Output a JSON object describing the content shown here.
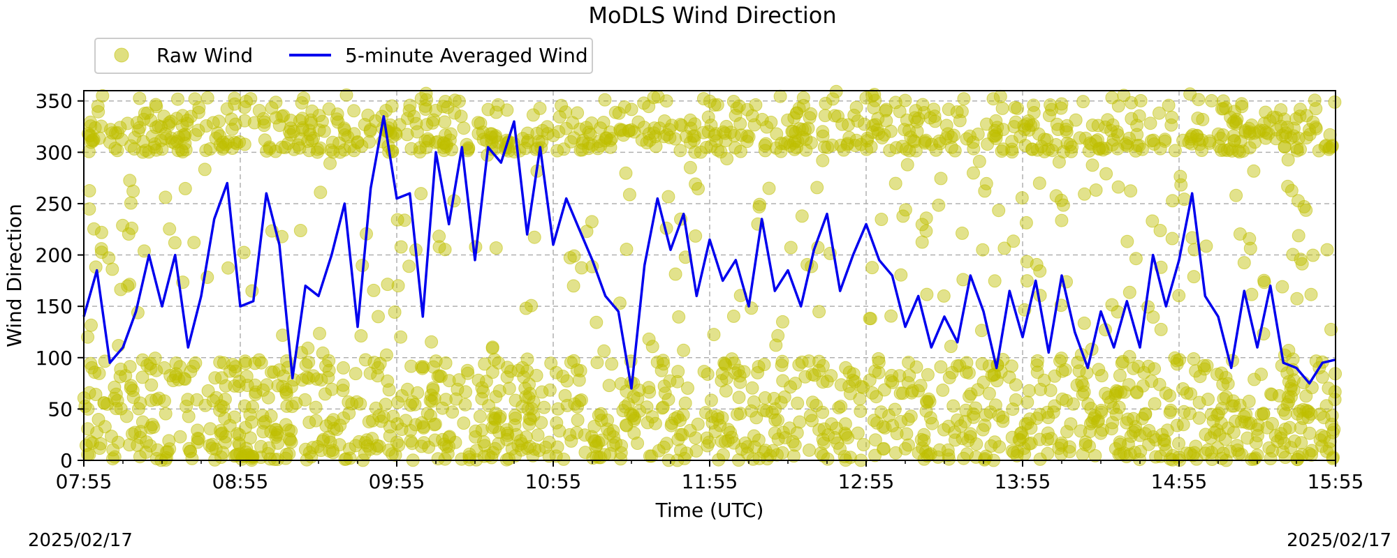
{
  "chart_data": {
    "type": "scatter",
    "title": "MoDLS Wind Direction",
    "xlabel": "Time (UTC)",
    "ylabel": "Wind Direction",
    "xlim": [
      "07:55",
      "15:55"
    ],
    "ylim": [
      0,
      360
    ],
    "x_ticks": [
      "07:55",
      "08:55",
      "09:55",
      "10:55",
      "11:55",
      "12:55",
      "13:55",
      "14:55",
      "15:55"
    ],
    "y_ticks": [
      0,
      50,
      100,
      150,
      200,
      250,
      300,
      350
    ],
    "grid": true,
    "legend_position": "top-left, above plot",
    "series": [
      {
        "name": "Raw Wind",
        "style": "points",
        "color": "#bfbf00",
        "note_values": "dense scatter concentrated at 0-100 and 300-360 degrees",
        "bands": [
          {
            "y_range": [
              0,
              100
            ],
            "share": 0.55
          },
          {
            "y_range": [
              300,
              360
            ],
            "share": 0.35
          },
          {
            "y_range": [
              100,
              300
            ],
            "share": 0.1
          }
        ]
      },
      {
        "name": "5-minute Averaged Wind",
        "style": "line",
        "color": "#0000ee",
        "x": [
          "07:55",
          "08:00",
          "08:05",
          "08:10",
          "08:15",
          "08:20",
          "08:25",
          "08:30",
          "08:35",
          "08:40",
          "08:45",
          "08:50",
          "08:55",
          "09:00",
          "09:05",
          "09:10",
          "09:15",
          "09:20",
          "09:25",
          "09:30",
          "09:35",
          "09:40",
          "09:45",
          "09:50",
          "09:55",
          "10:00",
          "10:05",
          "10:10",
          "10:15",
          "10:20",
          "10:25",
          "10:30",
          "10:35",
          "10:40",
          "10:45",
          "10:50",
          "10:55",
          "11:00",
          "11:05",
          "11:10",
          "11:15",
          "11:20",
          "11:25",
          "11:30",
          "11:35",
          "11:40",
          "11:45",
          "11:50",
          "11:55",
          "12:00",
          "12:05",
          "12:10",
          "12:15",
          "12:20",
          "12:25",
          "12:30",
          "12:35",
          "12:40",
          "12:45",
          "12:50",
          "12:55",
          "13:00",
          "13:05",
          "13:10",
          "13:15",
          "13:20",
          "13:25",
          "13:30",
          "13:35",
          "13:40",
          "13:45",
          "13:50",
          "13:55",
          "14:00",
          "14:05",
          "14:10",
          "14:15",
          "14:20",
          "14:25",
          "14:30",
          "14:35",
          "14:40",
          "14:45",
          "14:50",
          "14:55",
          "15:00",
          "15:05",
          "15:10",
          "15:15",
          "15:20",
          "15:25",
          "15:30",
          "15:35",
          "15:40",
          "15:45",
          "15:50",
          "15:55"
        ],
        "values": [
          140,
          185,
          95,
          110,
          145,
          200,
          150,
          200,
          110,
          160,
          235,
          270,
          150,
          155,
          260,
          210,
          80,
          170,
          160,
          200,
          250,
          130,
          265,
          335,
          255,
          260,
          140,
          300,
          230,
          305,
          195,
          305,
          290,
          330,
          220,
          305,
          210,
          255,
          225,
          195,
          160,
          145,
          70,
          190,
          255,
          205,
          240,
          160,
          215,
          175,
          195,
          150,
          235,
          165,
          185,
          150,
          205,
          240,
          165,
          200,
          230,
          195,
          180,
          130,
          160,
          110,
          140,
          115,
          180,
          145,
          90,
          165,
          120,
          175,
          105,
          180,
          125,
          90,
          145,
          110,
          155,
          110,
          200,
          150,
          195,
          260,
          160,
          140,
          90,
          165,
          110,
          170,
          95,
          90,
          75,
          95,
          98
        ]
      }
    ]
  },
  "footer": {
    "date_left": "2025/02/17",
    "date_right": "2025/02/17"
  }
}
